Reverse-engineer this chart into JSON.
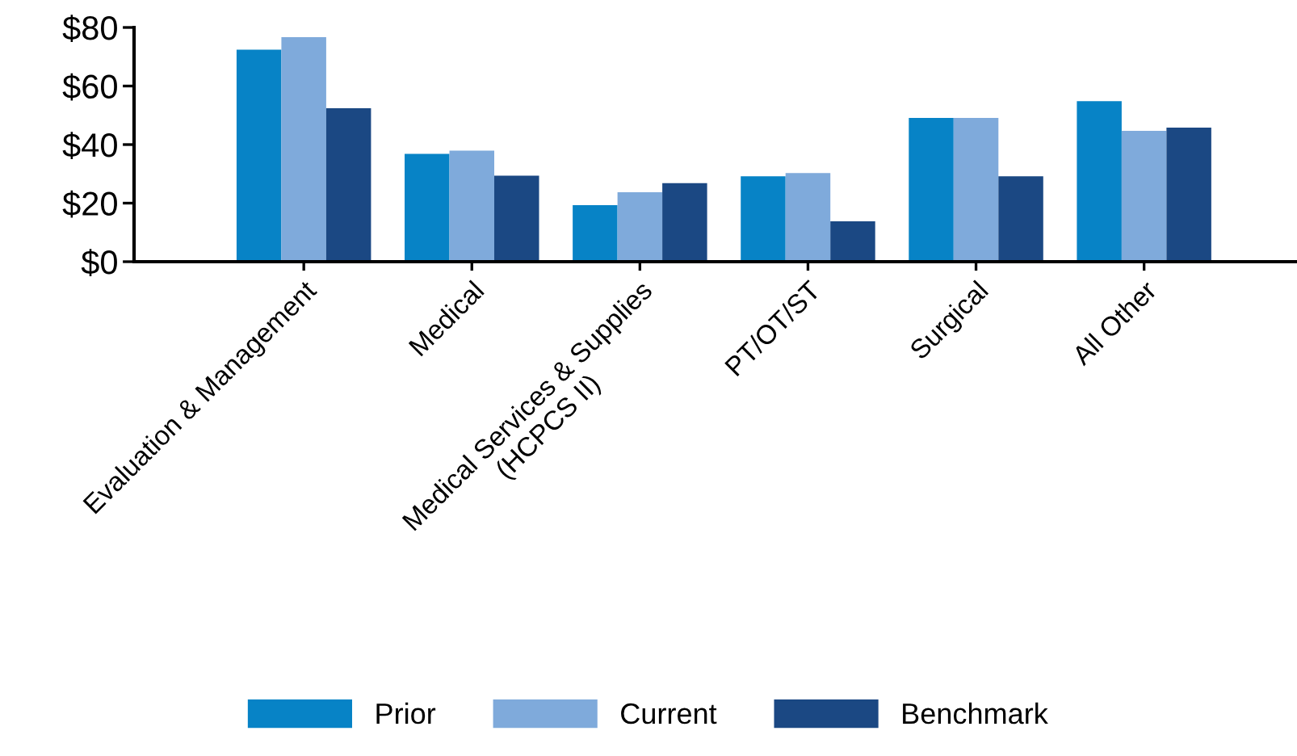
{
  "chart_data": {
    "type": "bar",
    "categories": [
      "Evaluation & Management",
      "Medical",
      "Medical Services & Supplies\n(HCPCS II)",
      "PT/OT/ST",
      "Surgical",
      "All Other"
    ],
    "series": [
      {
        "name": "Prior",
        "color": "#0783c6",
        "values": [
          72.4,
          36.8,
          19.3,
          29.2,
          49.1,
          54.8
        ]
      },
      {
        "name": "Current",
        "color": "#7faadb",
        "values": [
          76.7,
          37.9,
          23.7,
          30.3,
          49.1,
          44.7
        ]
      },
      {
        "name": "Benchmark",
        "color": "#1b4883",
        "values": [
          52.4,
          29.4,
          26.8,
          13.8,
          29.2,
          45.8
        ]
      }
    ],
    "ylim": [
      0,
      80
    ],
    "yticks": [
      {
        "value": 0,
        "label": "$0"
      },
      {
        "value": 20,
        "label": "$20"
      },
      {
        "value": 40,
        "label": "$40"
      },
      {
        "value": 60,
        "label": "$60"
      },
      {
        "value": 80,
        "label": "$80"
      }
    ],
    "grid": false,
    "legend": "bottom"
  }
}
